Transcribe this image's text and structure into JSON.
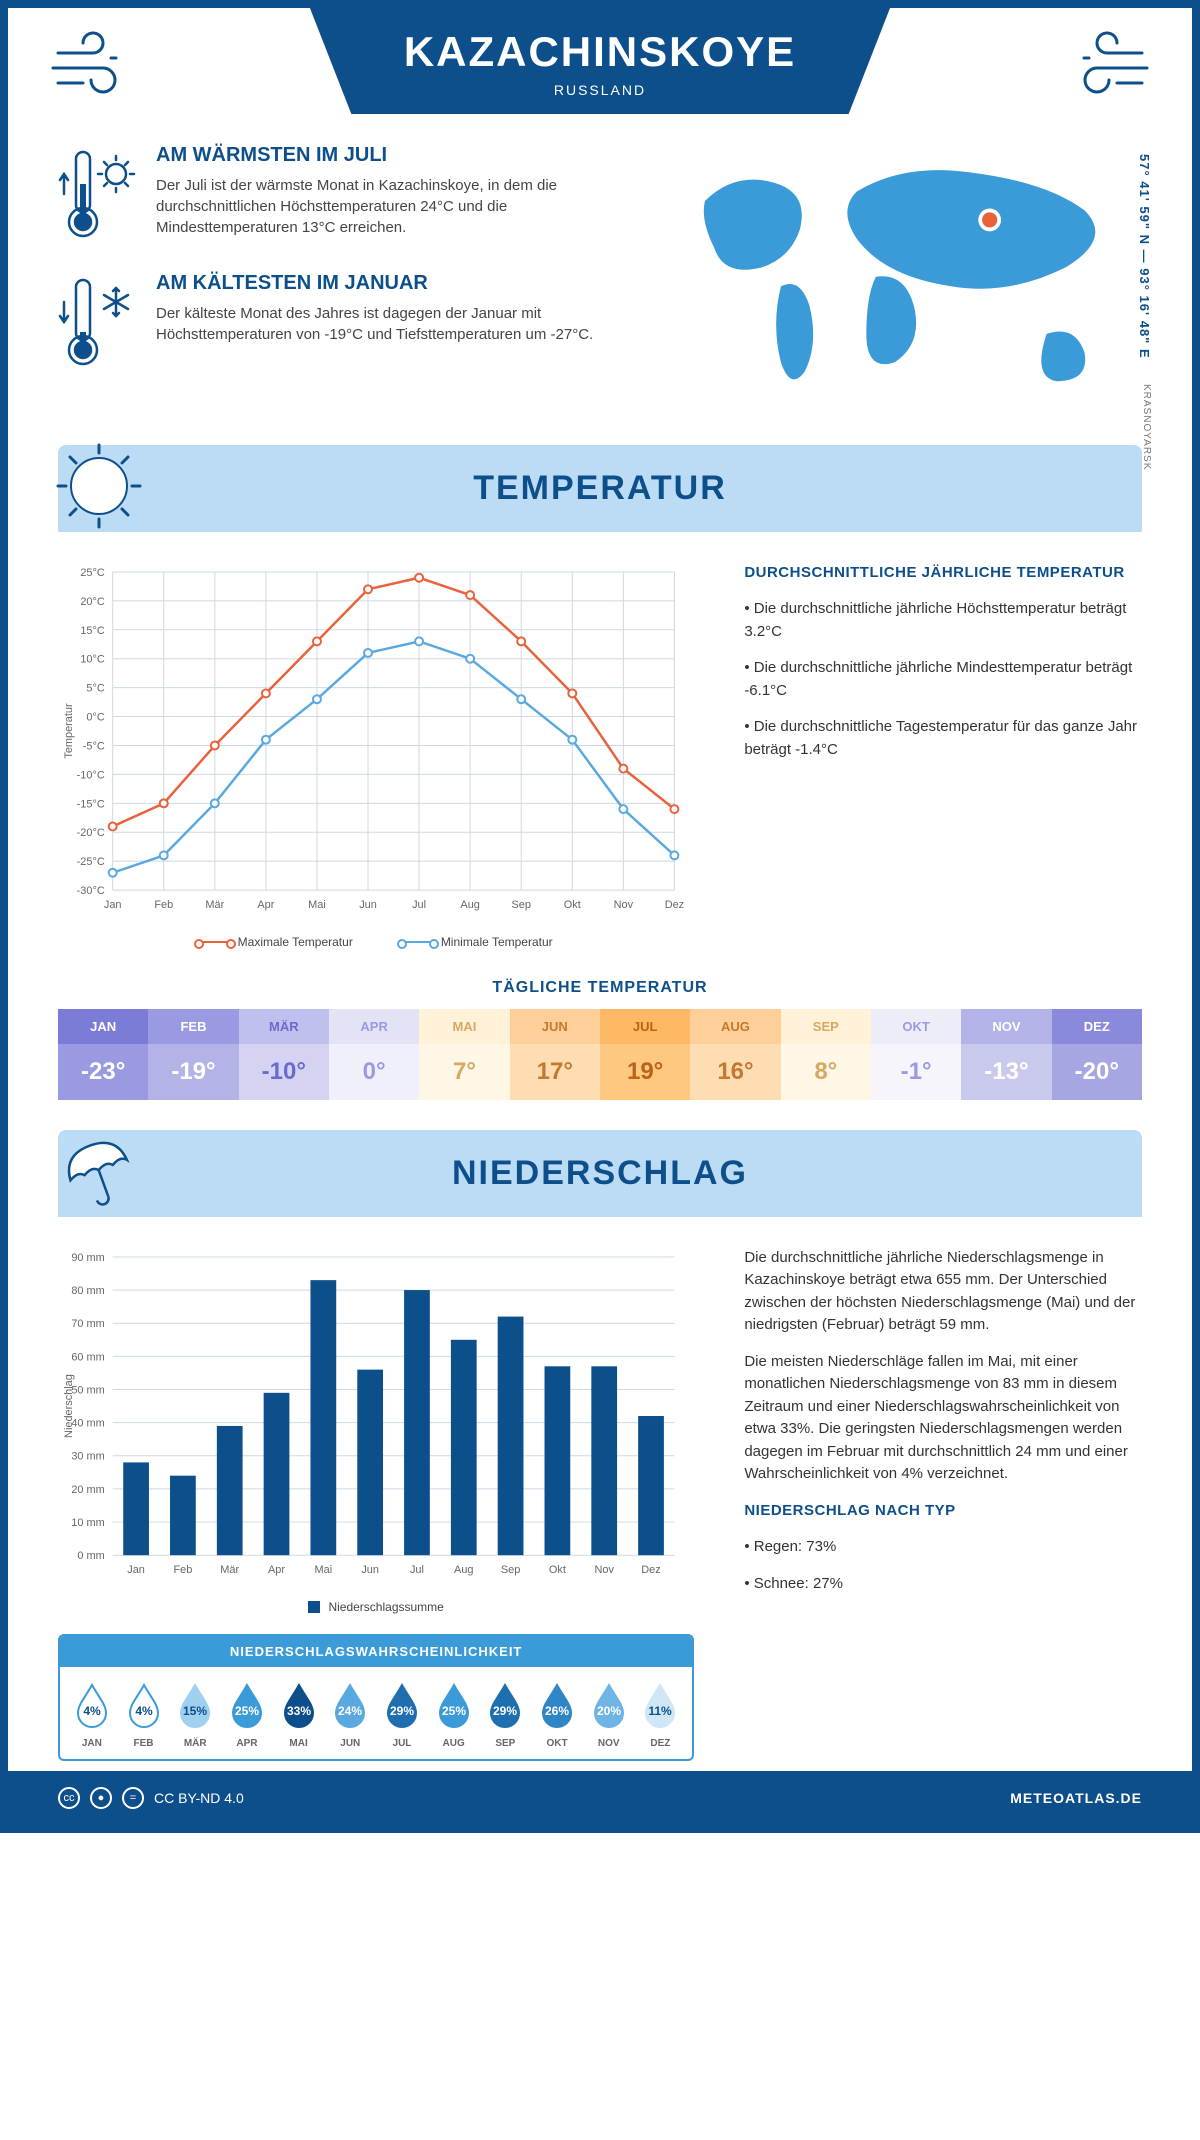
{
  "header": {
    "title": "KAZACHINSKOYE",
    "subtitle": "RUSSLAND"
  },
  "coords": "57° 41' 59\" N — 93° 16' 48\" E",
  "region": "KRASNOYARSK",
  "facts": {
    "warm": {
      "title": "AM WÄRMSTEN IM JULI",
      "body": "Der Juli ist der wärmste Monat in Kazachinskoye, in dem die durchschnittlichen Höchsttemperaturen 24°C und die Mindesttemperaturen 13°C erreichen."
    },
    "cold": {
      "title": "AM KÄLTESTEN IM JANUAR",
      "body": "Der kälteste Monat des Jahres ist dagegen der Januar mit Höchsttemperaturen von -19°C und Tiefsttemperaturen um -27°C."
    }
  },
  "sections": {
    "temperature": "TEMPERATUR",
    "precipitation": "NIEDERSCHLAG"
  },
  "temp_chart": {
    "months": [
      "Jan",
      "Feb",
      "Mär",
      "Apr",
      "Mai",
      "Jun",
      "Jul",
      "Aug",
      "Sep",
      "Okt",
      "Nov",
      "Dez"
    ],
    "max_series": [
      -19,
      -15,
      -5,
      4,
      13,
      22,
      24,
      21,
      13,
      4,
      -9,
      -16
    ],
    "min_series": [
      -27,
      -24,
      -15,
      -4,
      3,
      11,
      13,
      10,
      3,
      -4,
      -16,
      -24
    ],
    "max_color": "#e8623b",
    "min_color": "#5aa8e0",
    "grid_color": "#cfd8e3",
    "ymin": -30,
    "ymax": 25,
    "ystep": 5,
    "ylabel": "Temperatur",
    "legend_max": "Maximale Temperatur",
    "legend_min": "Minimale Temperatur"
  },
  "temp_text": {
    "heading": "DURCHSCHNITTLICHE JÄHRLICHE TEMPERATUR",
    "p1": "• Die durchschnittliche jährliche Höchsttemperatur beträgt 3.2°C",
    "p2": "• Die durchschnittliche jährliche Mindesttemperatur beträgt -6.1°C",
    "p3": "• Die durchschnittliche Tagestemperatur für das ganze Jahr beträgt -1.4°C"
  },
  "daily_temp": {
    "heading": "TÄGLICHE TEMPERATUR",
    "months": [
      "JAN",
      "FEB",
      "MÄR",
      "APR",
      "MAI",
      "JUN",
      "JUL",
      "AUG",
      "SEP",
      "OKT",
      "NOV",
      "DEZ"
    ],
    "values": [
      "-23°",
      "-19°",
      "-10°",
      "0°",
      "7°",
      "17°",
      "19°",
      "16°",
      "8°",
      "-1°",
      "-13°",
      "-20°"
    ],
    "head_colors": [
      "#7b7bd8",
      "#9a9ae3",
      "#c0c0ee",
      "#e3e3f6",
      "#fff2d9",
      "#ffcf99",
      "#ffb866",
      "#ffcf99",
      "#fff2d9",
      "#ededf7",
      "#b3b3e8",
      "#8a8add"
    ],
    "val_colors": [
      "#9a9ae3",
      "#b3b3e8",
      "#d4d4f2",
      "#f0f0fa",
      "#fff7e6",
      "#ffddb3",
      "#ffc880",
      "#ffddb3",
      "#fff7e6",
      "#f5f5fb",
      "#c9c9ee",
      "#a6a6e3"
    ],
    "text_colors": [
      "#ffffff",
      "#ffffff",
      "#6b6bcf",
      "#9a9ae3",
      "#d8a863",
      "#c47a2e",
      "#b96416",
      "#c47a2e",
      "#d8a863",
      "#9a9ae3",
      "#ffffff",
      "#ffffff"
    ]
  },
  "precip_chart": {
    "months": [
      "Jan",
      "Feb",
      "Mär",
      "Apr",
      "Mai",
      "Jun",
      "Jul",
      "Aug",
      "Sep",
      "Okt",
      "Nov",
      "Dez"
    ],
    "values": [
      28,
      24,
      39,
      49,
      83,
      56,
      80,
      65,
      72,
      57,
      57,
      42
    ],
    "bar_color": "#0d4f8b",
    "grid_color": "#cfd8e3",
    "ymax": 90,
    "ystep": 10,
    "ylabel": "Niederschlag",
    "legend": "Niederschlagssumme"
  },
  "precip_text": {
    "p1": "Die durchschnittliche jährliche Niederschlagsmenge in Kazachinskoye beträgt etwa 655 mm. Der Unterschied zwischen der höchsten Niederschlagsmenge (Mai) und der niedrigsten (Februar) beträgt 59 mm.",
    "p2": "Die meisten Niederschläge fallen im Mai, mit einer monatlichen Niederschlagsmenge von 83 mm in diesem Zeitraum und einer Niederschlagswahrscheinlichkeit von etwa 33%. Die geringsten Niederschlagsmengen werden dagegen im Februar mit durchschnittlich 24 mm und einer Wahrscheinlichkeit von 4% verzeichnet.",
    "h2": "NIEDERSCHLAG NACH TYP",
    "b1": "• Regen: 73%",
    "b2": "• Schnee: 27%"
  },
  "precip_prob": {
    "heading": "NIEDERSCHLAGSWAHRSCHEINLICHKEIT",
    "months": [
      "JAN",
      "FEB",
      "MÄR",
      "APR",
      "MAI",
      "JUN",
      "JUL",
      "AUG",
      "SEP",
      "OKT",
      "NOV",
      "DEZ"
    ],
    "pct": [
      "4%",
      "4%",
      "15%",
      "25%",
      "33%",
      "24%",
      "29%",
      "25%",
      "29%",
      "26%",
      "20%",
      "11%"
    ],
    "fills": [
      "#ffffff",
      "#ffffff",
      "#9fd0ee",
      "#3a9bd8",
      "#0d4f8b",
      "#5aa8e0",
      "#1f6fb0",
      "#3a9bd8",
      "#1f6fb0",
      "#2f86c7",
      "#6fb4e3",
      "#cfe6f5"
    ],
    "strokes": [
      "#3a9bd8",
      "#3a9bd8",
      "#9fd0ee",
      "#3a9bd8",
      "#0d4f8b",
      "#5aa8e0",
      "#1f6fb0",
      "#3a9bd8",
      "#1f6fb0",
      "#2f86c7",
      "#6fb4e3",
      "#cfe6f5"
    ],
    "pct_colors": [
      "#0d4f8b",
      "#0d4f8b",
      "#0d4f8b",
      "#ffffff",
      "#ffffff",
      "#ffffff",
      "#ffffff",
      "#ffffff",
      "#ffffff",
      "#ffffff",
      "#ffffff",
      "#0d4f8b"
    ]
  },
  "footer": {
    "license": "CC BY-ND 4.0",
    "site": "METEOATLAS.DE"
  },
  "colors": {
    "primary": "#0d4f8b",
    "light": "#bcdcf5"
  }
}
